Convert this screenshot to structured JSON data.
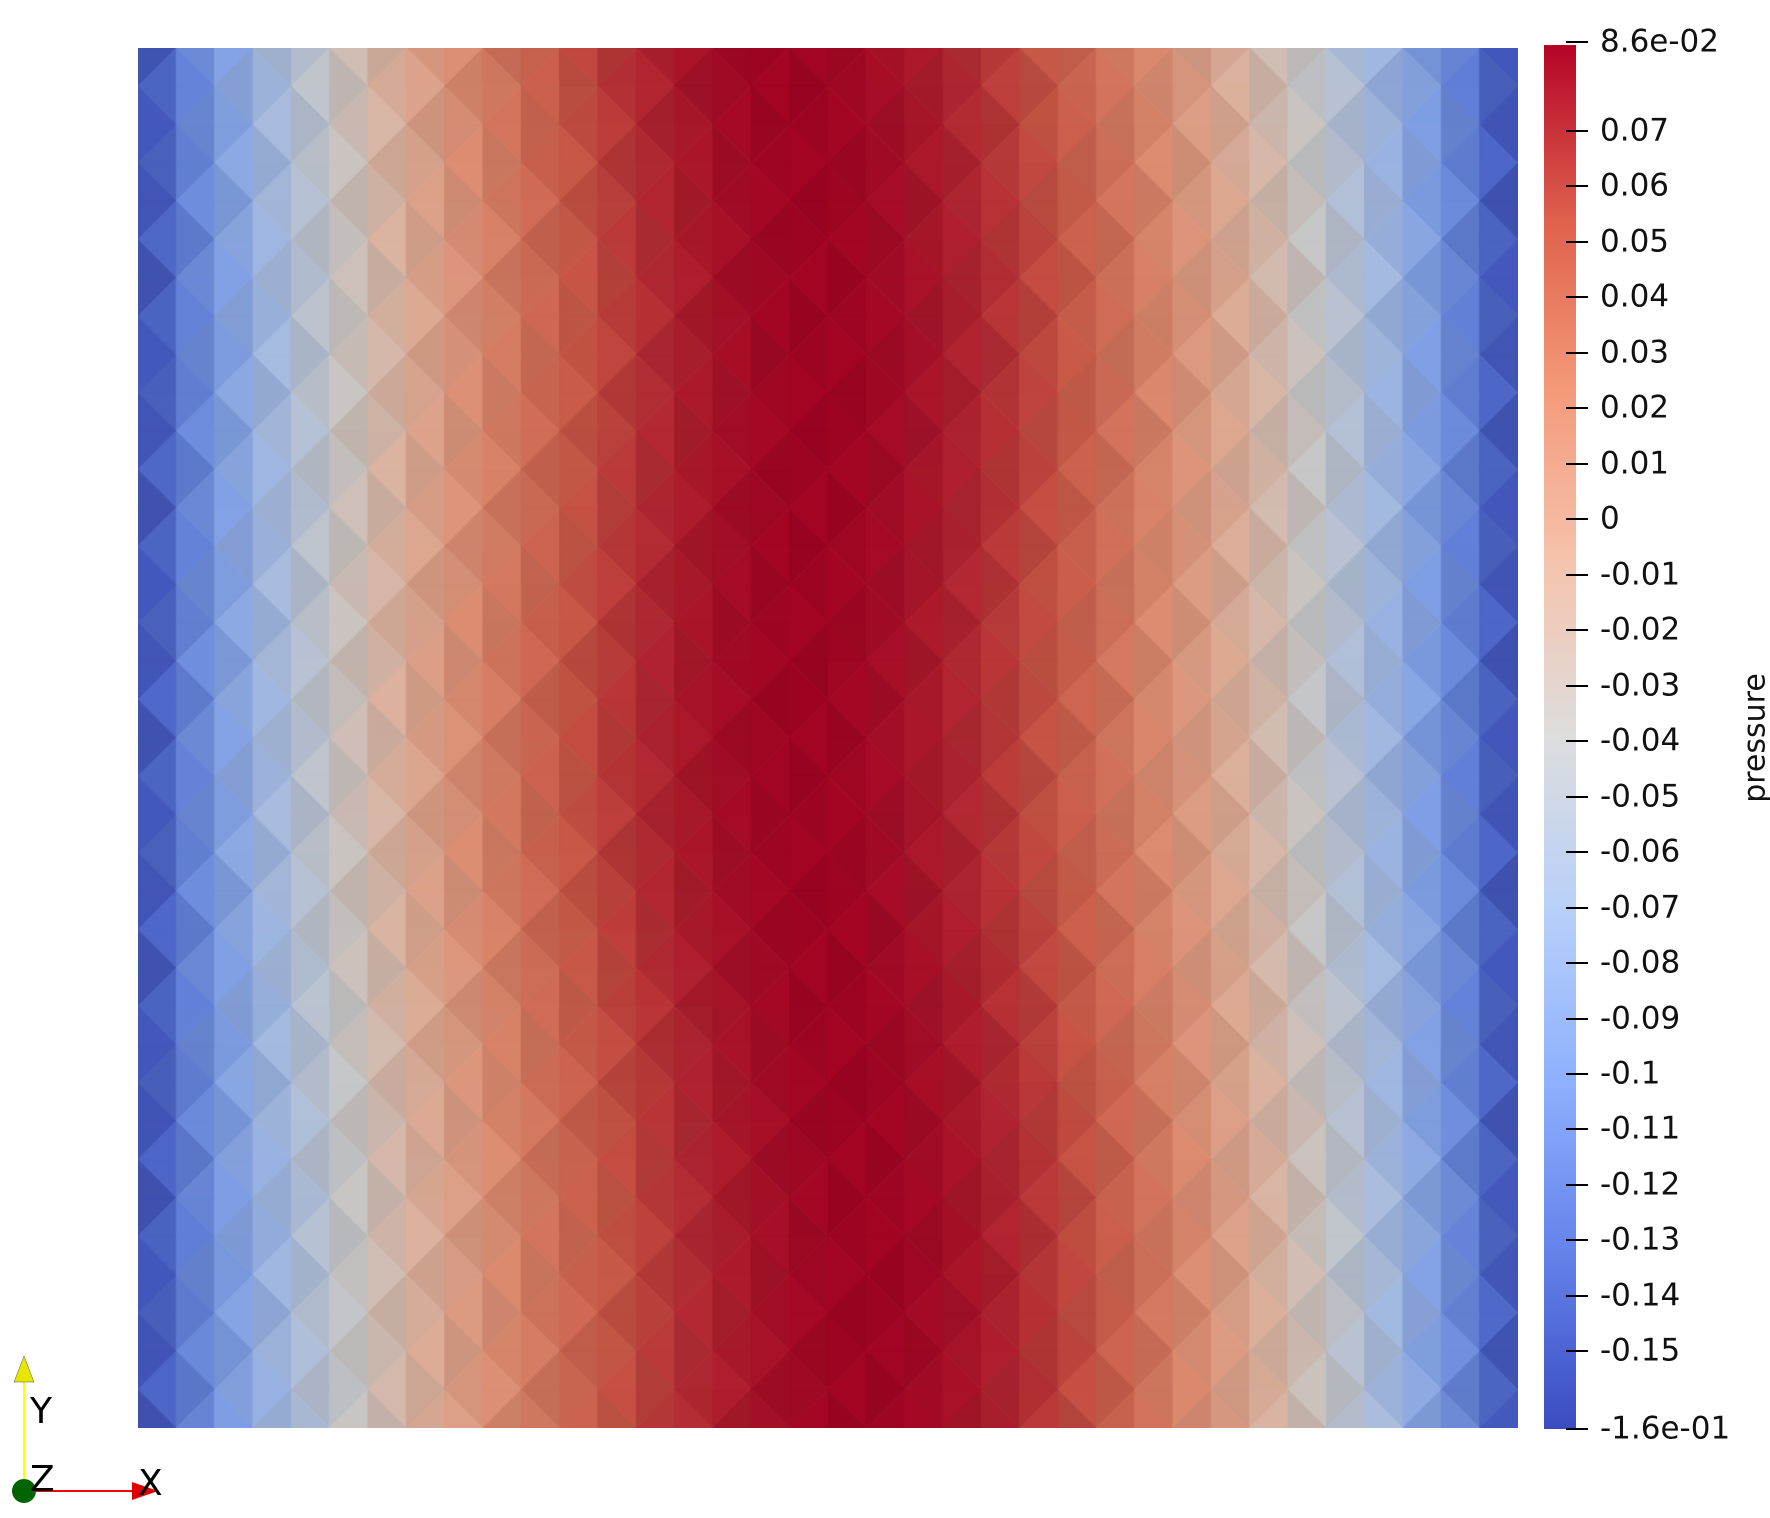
{
  "scalar_bar": {
    "title": "pressure",
    "range": [
      -0.164,
      0.0855
    ],
    "ticks": [
      {
        "value": 0.086,
        "label": "8.6e-02"
      },
      {
        "value": 0.07,
        "label": "0.07"
      },
      {
        "value": 0.06,
        "label": "0.06"
      },
      {
        "value": 0.05,
        "label": "0.05"
      },
      {
        "value": 0.04,
        "label": "0.04"
      },
      {
        "value": 0.03,
        "label": "0.03"
      },
      {
        "value": 0.02,
        "label": "0.02"
      },
      {
        "value": 0.01,
        "label": "0.01"
      },
      {
        "value": 0,
        "label": "0"
      },
      {
        "value": -0.01,
        "label": "-0.01"
      },
      {
        "value": -0.02,
        "label": "-0.02"
      },
      {
        "value": -0.03,
        "label": "-0.03"
      },
      {
        "value": -0.04,
        "label": "-0.04"
      },
      {
        "value": -0.05,
        "label": "-0.05"
      },
      {
        "value": -0.06,
        "label": "-0.06"
      },
      {
        "value": -0.07,
        "label": "-0.07"
      },
      {
        "value": -0.08,
        "label": "-0.08"
      },
      {
        "value": -0.09,
        "label": "-0.09"
      },
      {
        "value": -0.1,
        "label": "-0.1"
      },
      {
        "value": -0.11,
        "label": "-0.11"
      },
      {
        "value": -0.12,
        "label": "-0.12"
      },
      {
        "value": -0.13,
        "label": "-0.13"
      },
      {
        "value": -0.14,
        "label": "-0.14"
      },
      {
        "value": -0.15,
        "label": "-0.15"
      },
      {
        "value": -0.164,
        "label": "-1.6e-01"
      }
    ],
    "colormap": [
      "#3b4cc0",
      "#6282ea",
      "#8db0fe",
      "#b8d0f9",
      "#dddddd",
      "#f5c4ad",
      "#f49a7b",
      "#de604d",
      "#b40426"
    ]
  },
  "orientation_axes": {
    "x_label": "X",
    "y_label": "Y",
    "z_label": "Z",
    "x_color": "#ff0000",
    "y_color": "#ffff00",
    "z_color": "#006400"
  }
}
